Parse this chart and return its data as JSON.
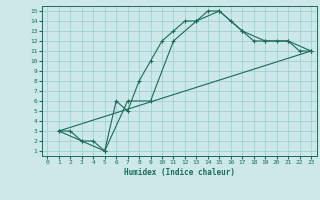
{
  "xlabel": "Humidex (Indice chaleur)",
  "background_color": "#cce8e8",
  "grid_color": "#99cccc",
  "line_color": "#1a6b5a",
  "xlim": [
    -0.5,
    23.5
  ],
  "ylim": [
    0.5,
    15.5
  ],
  "xticks": [
    0,
    1,
    2,
    3,
    4,
    5,
    6,
    7,
    8,
    9,
    10,
    11,
    12,
    13,
    14,
    15,
    16,
    17,
    18,
    19,
    20,
    21,
    22,
    23
  ],
  "yticks": [
    1,
    2,
    3,
    4,
    5,
    6,
    7,
    8,
    9,
    10,
    11,
    12,
    13,
    14,
    15
  ],
  "line1_x": [
    1,
    2,
    3,
    4,
    5,
    6,
    7,
    8,
    9,
    10,
    11,
    12,
    13,
    14,
    15,
    16,
    17,
    18,
    19,
    20,
    21,
    22,
    23
  ],
  "line1_y": [
    3,
    3,
    2,
    2,
    1,
    6,
    5,
    8,
    10,
    12,
    13,
    14,
    14,
    15,
    15,
    14,
    13,
    12,
    12,
    12,
    12,
    11,
    11
  ],
  "line2_x": [
    1,
    3,
    5,
    7,
    9,
    11,
    13,
    15,
    17,
    19,
    21,
    23
  ],
  "line2_y": [
    3,
    2,
    1,
    6,
    6,
    12,
    14,
    15,
    13,
    12,
    12,
    11
  ],
  "line3_x": [
    1,
    23
  ],
  "line3_y": [
    3,
    11
  ]
}
